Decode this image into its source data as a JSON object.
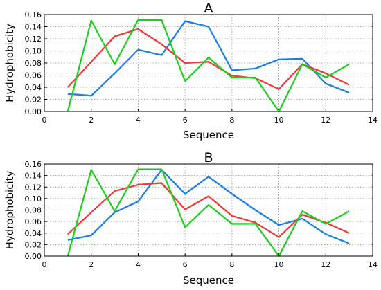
{
  "chart_data": [
    {
      "type": "line",
      "title": "A",
      "xlabel": "Sequence",
      "ylabel": "Hydrophobicity",
      "xlim": [
        0,
        14
      ],
      "ylim": [
        0,
        0.16
      ],
      "xticks": [
        "0",
        "2",
        "4",
        "6",
        "8",
        "10",
        "12",
        "14"
      ],
      "yticks": [
        "0.00",
        "0.02",
        "0.04",
        "0.06",
        "0.08",
        "0.10",
        "0.12",
        "0.14",
        "0.16"
      ],
      "grid": true,
      "x": [
        1,
        2,
        3,
        4,
        5,
        6,
        7,
        8,
        9,
        10,
        11,
        12,
        13
      ],
      "series": [
        {
          "color": "#1f7fe0",
          "values": [
            0.029,
            0.026,
            0.063,
            0.102,
            0.093,
            0.149,
            0.14,
            0.068,
            0.071,
            0.086,
            0.087,
            0.046,
            0.031
          ]
        },
        {
          "color": "#ee3b3b",
          "values": [
            0.04,
            0.082,
            0.124,
            0.136,
            0.111,
            0.08,
            0.082,
            0.059,
            0.055,
            0.037,
            0.078,
            0.063,
            0.044
          ]
        },
        {
          "color": "#22cc22",
          "values": [
            0.0,
            0.15,
            0.078,
            0.151,
            0.151,
            0.05,
            0.089,
            0.056,
            0.056,
            0.0,
            0.078,
            0.056,
            0.078
          ]
        }
      ]
    },
    {
      "type": "line",
      "title": "B",
      "xlabel": "Sequence",
      "ylabel": "Hydrophobicity",
      "xlim": [
        0,
        14
      ],
      "ylim": [
        0,
        0.16
      ],
      "xticks": [
        "0",
        "2",
        "4",
        "6",
        "8",
        "10",
        "12",
        "14"
      ],
      "yticks": [
        "0.00",
        "0.02",
        "0.04",
        "0.06",
        "0.08",
        "0.10",
        "0.12",
        "0.14",
        "0.16"
      ],
      "grid": true,
      "x": [
        1,
        2,
        3,
        4,
        5,
        6,
        7,
        8,
        9,
        10,
        11,
        12,
        13
      ],
      "series": [
        {
          "color": "#1f7fe0",
          "values": [
            0.028,
            0.036,
            0.076,
            0.095,
            0.15,
            0.108,
            0.138,
            0.108,
            0.08,
            0.054,
            0.065,
            0.038,
            0.022
          ]
        },
        {
          "color": "#ee3b3b",
          "values": [
            0.038,
            0.076,
            0.113,
            0.124,
            0.127,
            0.081,
            0.104,
            0.07,
            0.058,
            0.033,
            0.072,
            0.058,
            0.04
          ]
        },
        {
          "color": "#22cc22",
          "values": [
            0.0,
            0.15,
            0.078,
            0.151,
            0.151,
            0.05,
            0.089,
            0.056,
            0.056,
            0.0,
            0.078,
            0.056,
            0.078
          ]
        }
      ]
    }
  ]
}
